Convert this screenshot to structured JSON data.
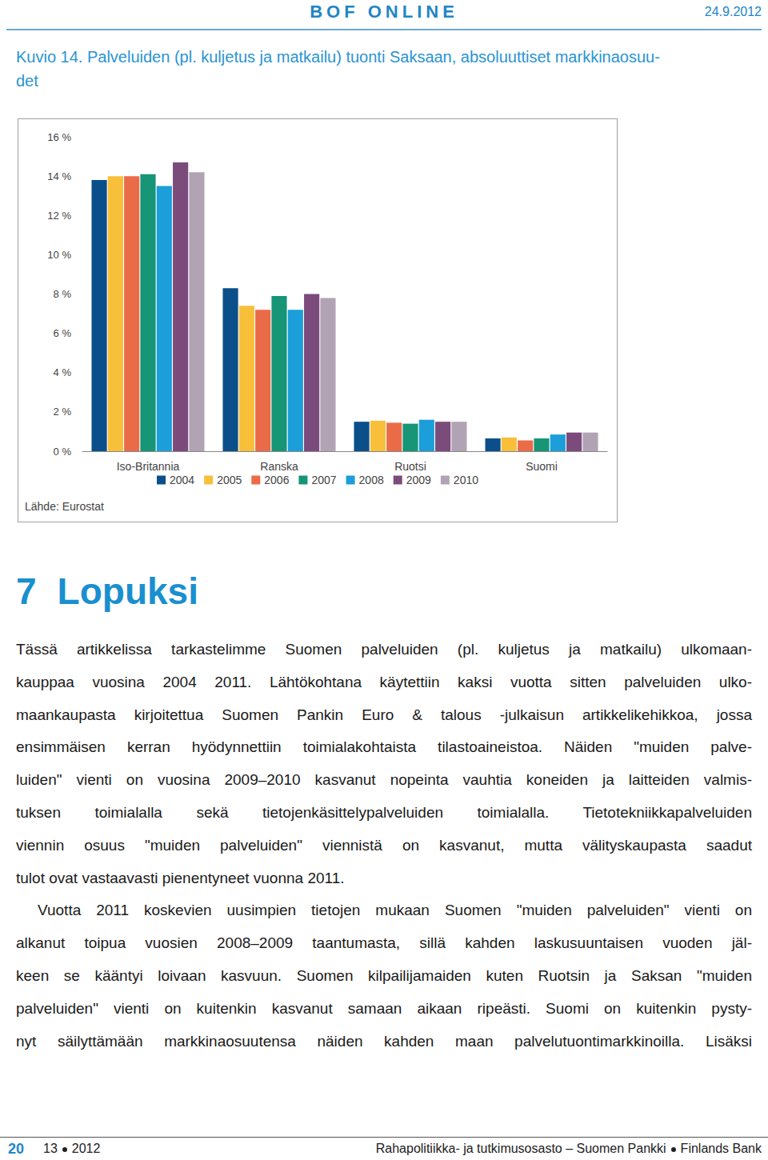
{
  "header": {
    "title": "BOF ONLINE",
    "date": "24.9.2012"
  },
  "figure": {
    "caption_lines": [
      "Kuvio 14. Palveluiden (pl. kuljetus ja matkailu) tuonti Saksaan, absoluuttiset markkinaosuu-",
      "det"
    ],
    "source": "Lähde: Eurostat"
  },
  "chart_data": {
    "type": "bar",
    "categories": [
      "Iso-Britannia",
      "Ranska",
      "Ruotsi",
      "Suomi"
    ],
    "series": [
      {
        "name": "2004",
        "color": "#0b4f8a",
        "values": [
          13.8,
          8.3,
          1.5,
          0.65
        ]
      },
      {
        "name": "2005",
        "color": "#f8bf3b",
        "values": [
          14.0,
          7.4,
          1.55,
          0.7
        ]
      },
      {
        "name": "2006",
        "color": "#ea6b48",
        "values": [
          14.0,
          7.2,
          1.45,
          0.55
        ]
      },
      {
        "name": "2007",
        "color": "#169577",
        "values": [
          14.1,
          7.9,
          1.4,
          0.65
        ]
      },
      {
        "name": "2008",
        "color": "#1b9ed9",
        "values": [
          13.5,
          7.2,
          1.6,
          0.85
        ]
      },
      {
        "name": "2009",
        "color": "#7b4b7c",
        "values": [
          14.7,
          8.0,
          1.5,
          0.95
        ]
      },
      {
        "name": "2010",
        "color": "#b2a3b4",
        "values": [
          14.2,
          7.8,
          1.5,
          0.95
        ]
      }
    ],
    "ylim": [
      0,
      16
    ],
    "yticks": [
      {
        "value": 0,
        "label": "0 %"
      },
      {
        "value": 2,
        "label": "2 %"
      },
      {
        "value": 4,
        "label": "4 %"
      },
      {
        "value": 6,
        "label": "6 %"
      },
      {
        "value": 8,
        "label": "8 %"
      },
      {
        "value": 10,
        "label": "10 %"
      },
      {
        "value": 12,
        "label": "12 %"
      },
      {
        "value": 14,
        "label": "14 %"
      },
      {
        "value": 16,
        "label": "16 %"
      }
    ],
    "grid": false,
    "legend": "bottom"
  },
  "section": {
    "number": "7",
    "title": "Lopuksi",
    "paragraphs": [
      [
        "Tässä artikkelissa tarkastelimme Suomen palveluiden (pl. kuljetus ja matkailu) ulkomaan-",
        "kauppaa vuosina 2004 2011. Lähtökohtana käytettiin kaksi vuotta sitten palveluiden ulko-",
        "maankaupasta kirjoitettua Suomen Pankin Euro & talous -julkaisun artikkelikehikkoa, jossa",
        "ensimmäisen kerran hyödynnettiin toimialakohtaista tilastoaineistoa. Näiden \"muiden palve-",
        "luiden\" vienti on vuosina 2009–2010 kasvanut nopeinta vauhtia koneiden ja laitteiden valmis-",
        "tuksen toimialalla sekä tietojenkäsittelypalveluiden toimialalla. Tietotekniikkapalveluiden",
        "viennin osuus \"muiden palveluiden\" viennistä on kasvanut, mutta välityskaupasta saadut",
        "tulot ovat vastaavasti pienentyneet vuonna 2011."
      ],
      [
        "Vuotta 2011 koskevien uusimpien tietojen mukaan Suomen \"muiden palveluiden\" vienti on",
        "alkanut toipua vuosien 2008–2009 taantumasta, sillä kahden laskusuuntaisen vuoden jäl-",
        "keen se kääntyi loivaan kasvuun. Suomen kilpailijamaiden kuten Ruotsin ja Saksan \"muiden",
        "palveluiden\" vienti on kuitenkin kasvanut samaan aikaan ripeästi. Suomi on kuitenkin pysty-",
        "nyt säilyttämään markkinaosuutensa näiden kahden maan palvelutuontimarkkinoilla. Lisäksi"
      ]
    ]
  },
  "footer": {
    "page": "20",
    "issue": "13",
    "year": "2012",
    "department": "Rahapolitiikka- ja tutkimusosasto – Suomen Pankki",
    "bank": "Finlands Bank"
  }
}
